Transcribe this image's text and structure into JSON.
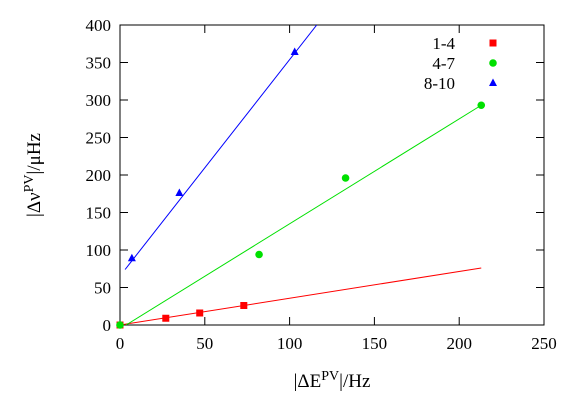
{
  "chart_data": {
    "type": "scatter",
    "title": "",
    "xlabel": "|ΔE^PV|/Hz",
    "ylabel": "|Δν^PV|/μHz",
    "xlim": [
      0,
      250
    ],
    "ylim": [
      0,
      400
    ],
    "x_ticks": [
      0,
      50,
      100,
      150,
      200,
      250
    ],
    "y_ticks": [
      0,
      50,
      100,
      150,
      200,
      250,
      300,
      350,
      400
    ],
    "grid": false,
    "legend_position": "top-right",
    "series": [
      {
        "name": "1-4",
        "marker": "square",
        "color": "#ff0000",
        "points": [
          [
            0,
            0
          ],
          [
            27,
            9
          ],
          [
            47,
            16
          ],
          [
            73,
            26
          ]
        ],
        "fit_line": [
          [
            0,
            0
          ],
          [
            213,
            76
          ]
        ]
      },
      {
        "name": "4-7",
        "marker": "circle",
        "color": "#00e000",
        "points": [
          [
            0,
            0
          ],
          [
            82,
            94
          ],
          [
            133,
            196
          ],
          [
            213,
            293
          ]
        ],
        "fit_line": [
          [
            0,
            -5
          ],
          [
            213,
            293
          ]
        ]
      },
      {
        "name": "8-10",
        "marker": "triangle",
        "color": "#0000ff",
        "points": [
          [
            7,
            89
          ],
          [
            35,
            176
          ],
          [
            103,
            364
          ]
        ],
        "fit_line": [
          [
            3,
            74
          ],
          [
            116,
            400
          ]
        ]
      }
    ]
  }
}
